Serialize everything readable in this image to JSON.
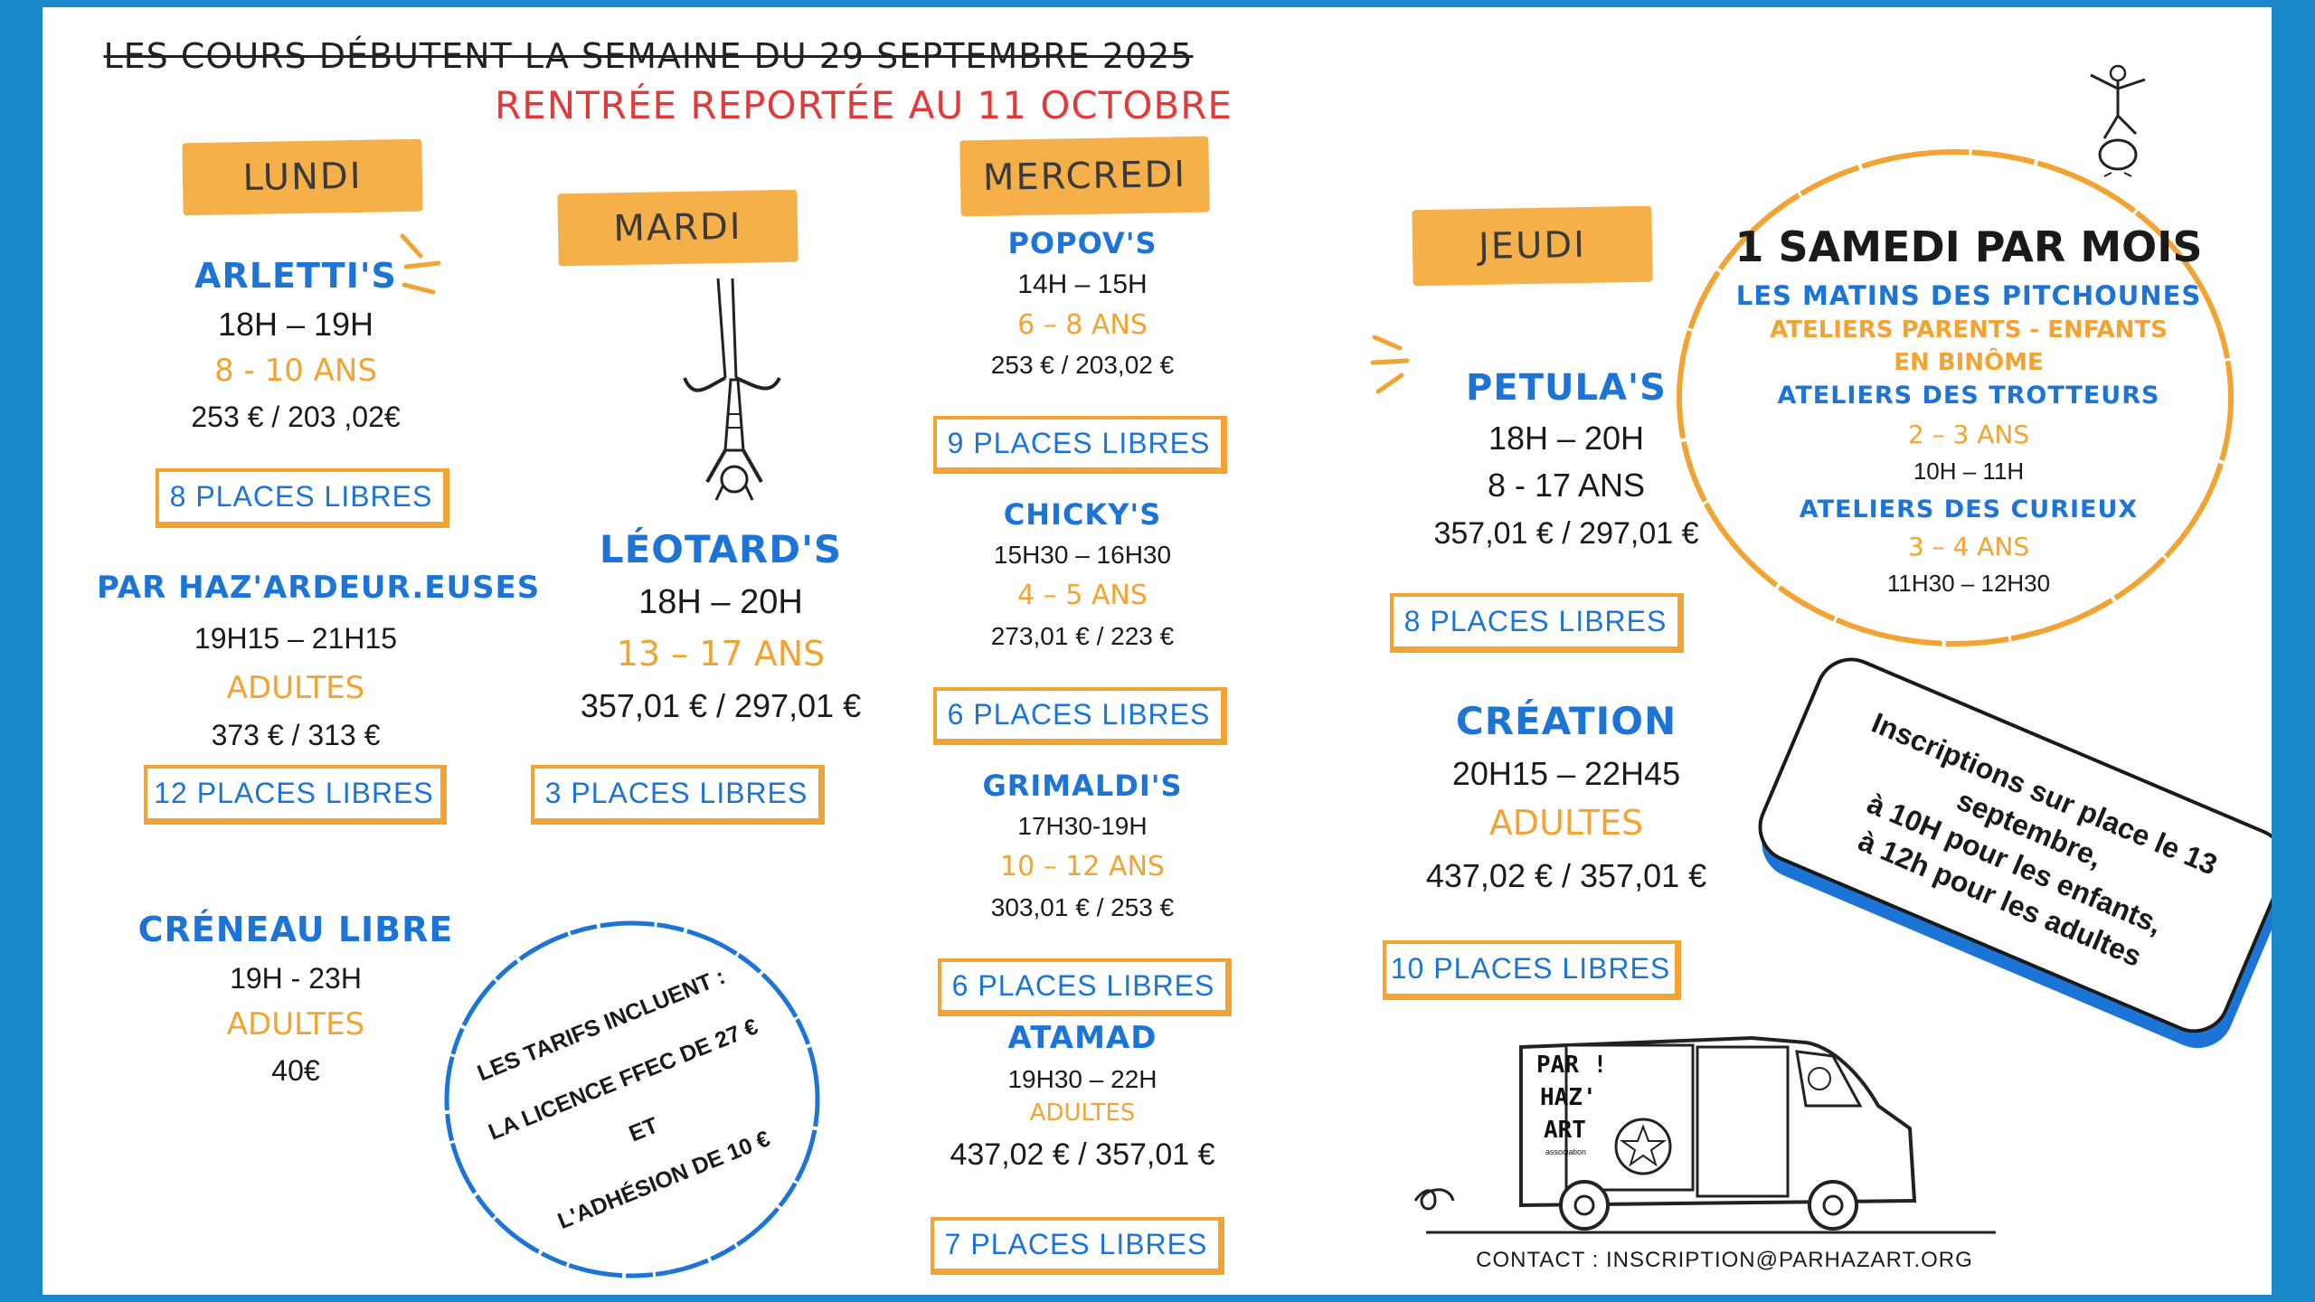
{
  "header": {
    "old_date": "LES COURS DÉBUTENT LA SEMAINE DU 29 SEPTEMBRE 2025",
    "new_date": "RENTRÉE REPORTÉE AU 11 OCTOBRE"
  },
  "days": {
    "lundi": "LUNDI",
    "mardi": "MARDI",
    "mercredi": "MERCREDI",
    "jeudi": "JEUDI"
  },
  "lundi": {
    "c1": {
      "name": "ARLETTI'S",
      "time": "18H – 19H",
      "age": "8 - 10 ANS",
      "price": "253 € / 203 ,02€",
      "places": "8 PLACES LIBRES"
    },
    "c2": {
      "name": "PAR HAZ'ARDEUR.EUSES",
      "time": "19H15 – 21H15",
      "age": "ADULTES",
      "price": "373 € / 313 €",
      "places": "12 PLACES LIBRES"
    },
    "c3": {
      "name": "CRÉNEAU LIBRE",
      "time": "19H - 23H",
      "age": "ADULTES",
      "price": "40€"
    }
  },
  "mardi": {
    "c1": {
      "name": "LÉOTARD'S",
      "time": "18H – 20H",
      "age": "13 – 17 ANS",
      "price": "357,01 € / 297,01 €",
      "places": "3 PLACES LIBRES"
    }
  },
  "mercredi": {
    "c1": {
      "name": "POPOV'S",
      "time": "14H – 15H",
      "age": "6 – 8 ANS",
      "price": "253 € / 203,02 €",
      "places": "9 PLACES LIBRES"
    },
    "c2": {
      "name": "CHICKY'S",
      "time": "15H30 – 16H30",
      "age": "4 – 5 ANS",
      "price": "273,01 € / 223 €",
      "places": "6 PLACES LIBRES"
    },
    "c3": {
      "name": "GRIMALDI'S",
      "time": "17H30-19H",
      "age": "10 – 12 ANS",
      "price": "303,01 € / 253 €",
      "places": "6 PLACES LIBRES"
    },
    "c4": {
      "name": "ATAMAD",
      "time": "19H30 – 22H",
      "age": "ADULTES",
      "price": "437,02 € / 357,01 €",
      "places": "7 PLACES LIBRES"
    }
  },
  "jeudi": {
    "c1": {
      "name": "PETULA'S",
      "time": "18H – 20H",
      "age": "8 - 17 ANS",
      "price": "357,01 € / 297,01 €",
      "places": "8 PLACES LIBRES"
    },
    "c2": {
      "name": "CRÉATION",
      "time": "20H15 – 22H45",
      "age": "ADULTES",
      "price": "437,02 € / 357,01 €",
      "places": "10 PLACES LIBRES"
    }
  },
  "samedi": {
    "title": "1 SAMEDI PAR MOIS",
    "sub1": "LES MATINS DES PITCHOUNES",
    "sub2": "ATELIERS PARENTS - ENFANTS",
    "sub3": "EN BINÔME",
    "sub4": "ATELIERS DES TROTTEURS",
    "age1": "2 – 3 ANS",
    "time1": "10H – 11H",
    "sub5": "ATELIERS DES CURIEUX",
    "age2": "3 – 4 ANS",
    "time2": "11H30 – 12H30"
  },
  "tarifs": {
    "line1": "LES TARIFS  INCLUENT :",
    "line2": "LA LICENCE FFEC DE 27 €",
    "line3": "ET",
    "line4": "L'ADHÉSION DE 10 €"
  },
  "inscriptions": {
    "line1": "Inscriptions sur place le 13",
    "line2": "septembre,",
    "line3": "à 10H pour les enfants,",
    "line4": "à 12h pour les adultes"
  },
  "van": {
    "logo_l1": "PAR !",
    "logo_l2": "HAZ'",
    "logo_l3": "ART",
    "logo_l4": "association"
  },
  "contact": "CONTACT : INSCRIPTION@PARHAZART.ORG",
  "colors": {
    "blue": "#1b74d6",
    "orange": "#f2a332",
    "red": "#e23a3a",
    "frame": "#1a87c9"
  }
}
